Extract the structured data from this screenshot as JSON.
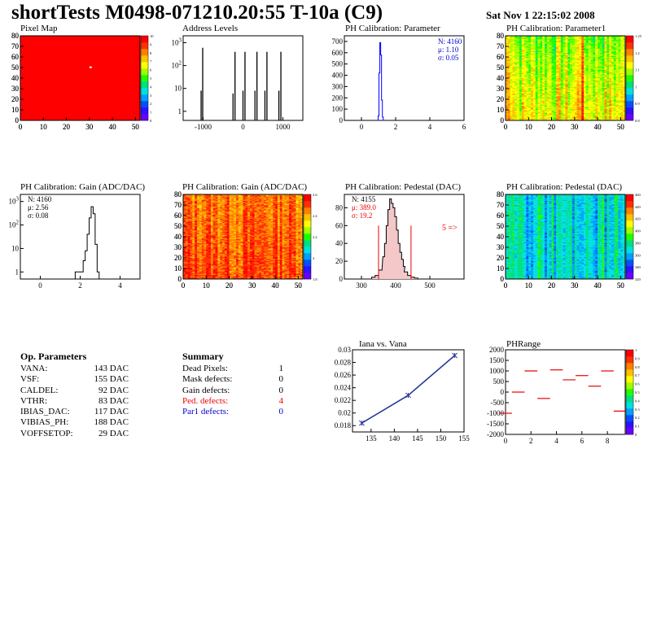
{
  "title": "shortTests M0498-071210.20:55 T-10a (C9)",
  "timestamp": "Sat Nov  1 22:15:02 2008",
  "colors": {
    "red": "#ff0000",
    "blue": "#0000ff",
    "black": "#000000",
    "redtext": "#e00000"
  },
  "chart_data": [
    {
      "id": "pixel_map",
      "type": "heatmap",
      "title": "Pixel Map",
      "xlim": [
        0,
        52
      ],
      "ylim": [
        0,
        80
      ],
      "xticks": [
        "0",
        "10",
        "20",
        "30",
        "40",
        "50"
      ],
      "yticks": [
        "0",
        "10",
        "20",
        "30",
        "40",
        "50",
        "60",
        "70",
        "80"
      ],
      "zticks": [
        "0",
        "1",
        "2",
        "3",
        "4",
        "5",
        "6",
        "7",
        "8",
        "9",
        "10"
      ],
      "fill_color": "#ff0000",
      "marked_pixel": {
        "x": 30,
        "y": 51
      }
    },
    {
      "id": "address_levels",
      "type": "bar",
      "title": "Address Levels",
      "xlim": [
        -1500,
        1500
      ],
      "log_y": true,
      "xticks": [
        "-1000",
        "0",
        "1000"
      ],
      "yticks": [
        "1",
        "10",
        "10^2",
        "10^3"
      ],
      "peaks": [
        {
          "x": -1050,
          "v": 8
        },
        {
          "x": -1010,
          "v": 600
        },
        {
          "x": -250,
          "v": 6
        },
        {
          "x": -200,
          "v": 400
        },
        {
          "x": 0,
          "v": 8
        },
        {
          "x": 50,
          "v": 400
        },
        {
          "x": 300,
          "v": 8
        },
        {
          "x": 350,
          "v": 400
        },
        {
          "x": 550,
          "v": 8
        },
        {
          "x": 600,
          "v": 400
        },
        {
          "x": 900,
          "v": 8
        },
        {
          "x": 950,
          "v": 400
        }
      ]
    },
    {
      "id": "ph_param",
      "type": "bar",
      "title": "PH Calibration: Parameter",
      "xlim": [
        -1,
        6
      ],
      "ylim": [
        0,
        750
      ],
      "xticks": [
        "0",
        "2",
        "4",
        "6"
      ],
      "yticks": [
        "0",
        "100",
        "200",
        "300",
        "400",
        "500",
        "600",
        "700"
      ],
      "stats": [
        "N: 4160",
        "μ: 1.10",
        "σ: 0.05"
      ],
      "x": [
        0.95,
        1.0,
        1.05,
        1.1,
        1.15,
        1.2,
        1.25,
        1.3
      ],
      "values": [
        0,
        40,
        420,
        690,
        580,
        180,
        30,
        0
      ]
    },
    {
      "id": "ph_param1",
      "type": "heatmap",
      "title": "PH Calibration: Parameter1",
      "xlim": [
        0,
        52
      ],
      "ylim": [
        0,
        80
      ],
      "xticks": [
        "0",
        "10",
        "20",
        "30",
        "40",
        "50"
      ],
      "yticks": [
        "0",
        "10",
        "20",
        "30",
        "40",
        "50",
        "60",
        "70",
        "80"
      ],
      "zticks": [
        "0.8",
        "0.9",
        "1",
        "1.1",
        "1.2",
        "1.25"
      ]
    },
    {
      "id": "gain_1d",
      "type": "bar",
      "title": "PH Calibration: Gain (ADC/DAC)",
      "xlim": [
        -1,
        5
      ],
      "log_y": true,
      "xticks": [
        "0",
        "2",
        "4"
      ],
      "yticks": [
        "1",
        "10",
        "10^2",
        "10^3"
      ],
      "stats": [
        "N: 4160",
        "μ: 2.56",
        "σ: 0.08"
      ],
      "x": [
        1.8,
        1.9,
        2.0,
        2.1,
        2.2,
        2.3,
        2.4,
        2.5,
        2.6,
        2.7,
        2.8,
        2.9
      ],
      "values": [
        1,
        1,
        1,
        1,
        3,
        8,
        40,
        200,
        600,
        300,
        15,
        1
      ]
    },
    {
      "id": "gain_2d",
      "type": "heatmap",
      "title": "PH Calibration: Gain (ADC/DAC)",
      "xlim": [
        0,
        52
      ],
      "ylim": [
        0,
        80
      ],
      "xticks": [
        "0",
        "10",
        "20",
        "30",
        "40",
        "50"
      ],
      "yticks": [
        "0",
        "10",
        "20",
        "30",
        "40",
        "50",
        "60",
        "70",
        "80"
      ],
      "zticks": [
        "1.8",
        "2",
        "2.2",
        "2.4",
        "2.6"
      ]
    },
    {
      "id": "pedestal_1d",
      "type": "bar",
      "title": "PH Calibration: Pedestal (DAC)",
      "xlim": [
        250,
        600
      ],
      "ylim": [
        0,
        95
      ],
      "xticks": [
        "300",
        "400",
        "500"
      ],
      "yticks": [
        "0",
        "20",
        "40",
        "60",
        "80"
      ],
      "stats": [
        "N: 4155",
        "μ: 389.0",
        "σ: 19.2"
      ],
      "overflow_label": "5 =>",
      "cut_lines": [
        350,
        445
      ],
      "x": [
        335,
        345,
        355,
        365,
        370,
        375,
        380,
        385,
        390,
        395,
        400,
        405,
        410,
        415,
        420,
        425,
        430,
        440,
        450,
        460
      ],
      "values": [
        2,
        4,
        10,
        25,
        40,
        60,
        78,
        90,
        85,
        80,
        70,
        55,
        40,
        30,
        22,
        14,
        8,
        4,
        2,
        1
      ]
    },
    {
      "id": "pedestal_2d",
      "type": "heatmap",
      "title": "PH Calibration: Pedestal (DAC)",
      "xlim": [
        0,
        52
      ],
      "ylim": [
        0,
        80
      ],
      "xticks": [
        "0",
        "10",
        "20",
        "30",
        "40",
        "50"
      ],
      "yticks": [
        "0",
        "10",
        "20",
        "30",
        "40",
        "50",
        "60",
        "70",
        "80"
      ],
      "zticks": [
        "320",
        "340",
        "360",
        "380",
        "400",
        "420",
        "440",
        "460"
      ]
    },
    {
      "id": "iana_vana",
      "type": "line",
      "title": "Iana vs. Vana",
      "xlim": [
        131,
        155
      ],
      "ylim": [
        0.017,
        0.03
      ],
      "xticks": [
        "135",
        "140",
        "145",
        "150",
        "155"
      ],
      "yticks": [
        "0.018",
        "0.02",
        "0.022",
        "0.024",
        "0.026",
        "0.028",
        "0.03"
      ],
      "x": [
        133,
        143,
        153
      ],
      "y": [
        0.0184,
        0.0228,
        0.0291
      ]
    },
    {
      "id": "phrange",
      "type": "scatter",
      "title": "PHRange",
      "xlim": [
        0,
        9.4
      ],
      "ylim": [
        -2000,
        2000
      ],
      "xticks": [
        "0",
        "2",
        "4",
        "6",
        "8"
      ],
      "yticks": [
        "-2000",
        "-1500",
        "-1000",
        "-500",
        "0",
        "500",
        "1000",
        "1500",
        "2000"
      ],
      "zticks": [
        "0",
        "0.1",
        "0.2",
        "0.3",
        "0.4",
        "0.5",
        "0.6",
        "0.7",
        "0.8",
        "0.9",
        "1"
      ],
      "x": [
        0,
        1,
        2,
        3,
        4,
        5,
        6,
        7,
        8,
        9
      ],
      "y": [
        -1000,
        0,
        1000,
        -300,
        1050,
        580,
        780,
        280,
        1000,
        -900
      ]
    }
  ],
  "op_params": {
    "heading": "Op. Parameters",
    "rows": [
      {
        "name": "VANA:",
        "value": "143 DAC"
      },
      {
        "name": "VSF:",
        "value": "155 DAC"
      },
      {
        "name": "CALDEL:",
        "value": "92 DAC"
      },
      {
        "name": "VTHR:",
        "value": "83 DAC"
      },
      {
        "name": "IBIAS_DAC:",
        "value": "117 DAC"
      },
      {
        "name": "VIBIAS_PH:",
        "value": "188 DAC"
      },
      {
        "name": "VOFFSETOP:",
        "value": "29 DAC"
      }
    ]
  },
  "summary": {
    "heading": "Summary",
    "rows": [
      {
        "name": "Dead Pixels:",
        "value": "1",
        "color": "black"
      },
      {
        "name": "Mask defects:",
        "value": "0",
        "color": "black"
      },
      {
        "name": "Gain defects:",
        "value": "0",
        "color": "black"
      },
      {
        "name": "Ped. defects:",
        "value": "4",
        "color": "red"
      },
      {
        "name": "Par1 defects:",
        "value": "0",
        "color": "blue"
      }
    ]
  }
}
